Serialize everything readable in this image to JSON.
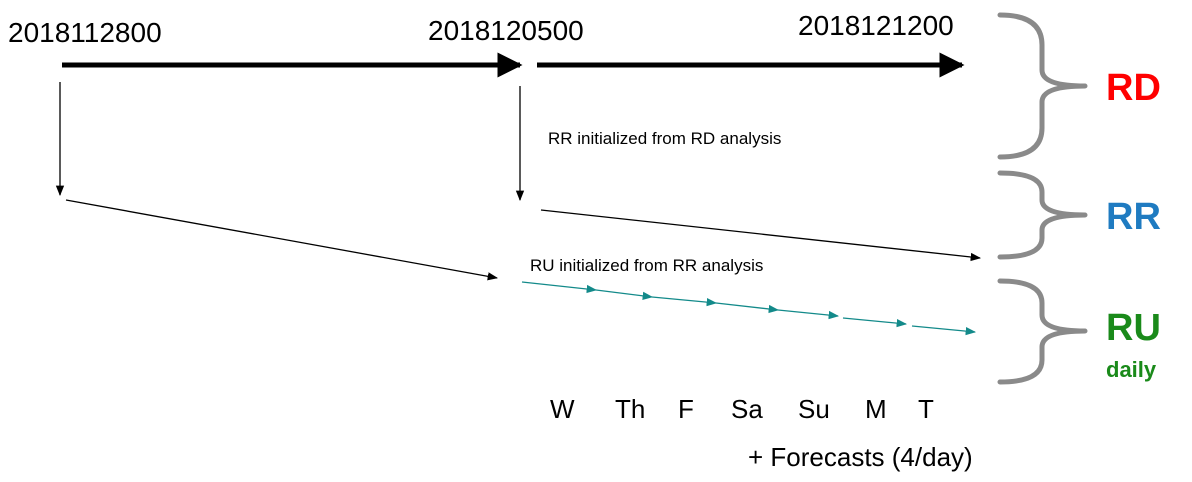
{
  "dates": [
    "2018112800",
    "2018120500",
    "2018121200"
  ],
  "notes": {
    "rr_init": "RR initialized from RD analysis",
    "ru_init": "RU initialized from RR analysis"
  },
  "systems": {
    "rd": "RD",
    "rr": "RR",
    "ru": "RU",
    "ru_sub": "daily"
  },
  "days": [
    "W",
    "Th",
    "F",
    "Sa",
    "Su",
    "M",
    "T"
  ],
  "footer": "+ Forecasts (4/day)"
}
